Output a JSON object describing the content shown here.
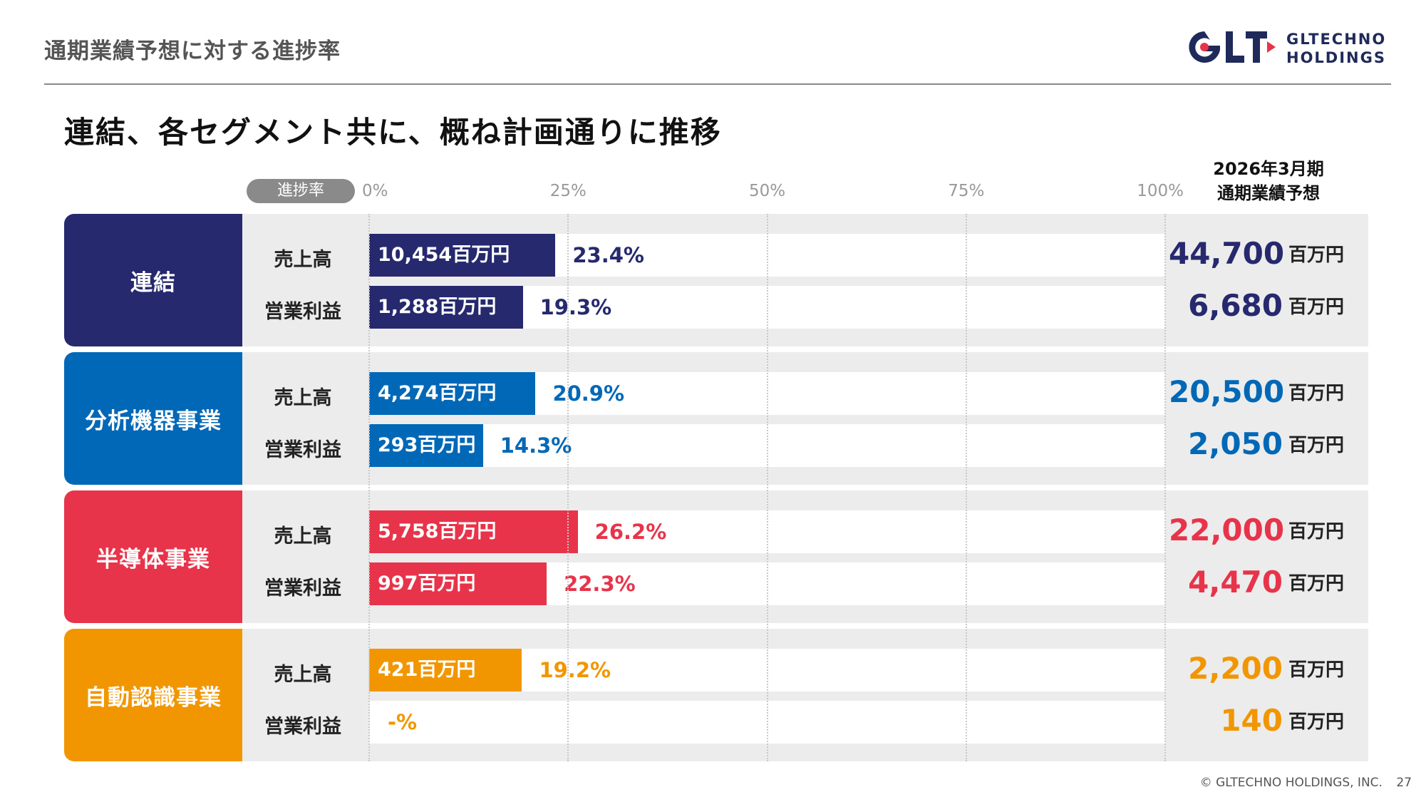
{
  "header": {
    "title": "通期業績予想に対する進捗率",
    "logo_text_line1": "GLTECHNO",
    "logo_text_line2": "HOLDINGS",
    "logo_mark": "GLT"
  },
  "subtitle": "連結、各セグメント共に、概ね計画通りに推移",
  "colors": {
    "consolidated": "#26296e",
    "analytical": "#0068b7",
    "semiconductor": "#e8344b",
    "auto_id": "#f29600"
  },
  "chart_data": {
    "type": "bar",
    "orientation": "horizontal",
    "progress_label": "進捗率",
    "x_ticks": [
      "0%",
      "25%",
      "50%",
      "75%",
      "100%"
    ],
    "xlim": [
      0,
      100
    ],
    "forecast_header": [
      "2026年3月期",
      "通期業績予想"
    ],
    "unit": "百万円",
    "segments": [
      {
        "name": "連結",
        "color": "#26296e",
        "rows": [
          {
            "metric": "売上高",
            "actual": "10,454百万円",
            "progress": 23.4,
            "progress_label": "23.4%",
            "forecast": "44,700",
            "unit": "百万円"
          },
          {
            "metric": "営業利益",
            "actual": "1,288百万円",
            "progress": 19.3,
            "progress_label": "19.3%",
            "forecast": "6,680",
            "unit": "百万円"
          }
        ]
      },
      {
        "name": "分析機器事業",
        "color": "#0068b7",
        "rows": [
          {
            "metric": "売上高",
            "actual": "4,274百万円",
            "progress": 20.9,
            "progress_label": "20.9%",
            "forecast": "20,500",
            "unit": "百万円"
          },
          {
            "metric": "営業利益",
            "actual": "293百万円",
            "progress": 14.3,
            "progress_label": "14.3%",
            "forecast": "2,050",
            "unit": "百万円"
          }
        ]
      },
      {
        "name": "半導体事業",
        "color": "#e8344b",
        "rows": [
          {
            "metric": "売上高",
            "actual": "5,758百万円",
            "progress": 26.2,
            "progress_label": "26.2%",
            "forecast": "22,000",
            "unit": "百万円"
          },
          {
            "metric": "営業利益",
            "actual": "997百万円",
            "progress": 22.3,
            "progress_label": "22.3%",
            "forecast": "4,470",
            "unit": "百万円"
          }
        ]
      },
      {
        "name": "自動認識事業",
        "color": "#f29600",
        "rows": [
          {
            "metric": "売上高",
            "actual": "421百万円",
            "progress": 19.2,
            "progress_label": "19.2%",
            "forecast": "2,200",
            "unit": "百万円"
          },
          {
            "metric": "営業利益",
            "actual": "",
            "progress": 0,
            "progress_label": "-%",
            "forecast": "140",
            "unit": "百万円"
          }
        ]
      }
    ]
  },
  "footer": {
    "copyright": "© GLTECHNO HOLDINGS, INC.",
    "page_number": "27"
  }
}
